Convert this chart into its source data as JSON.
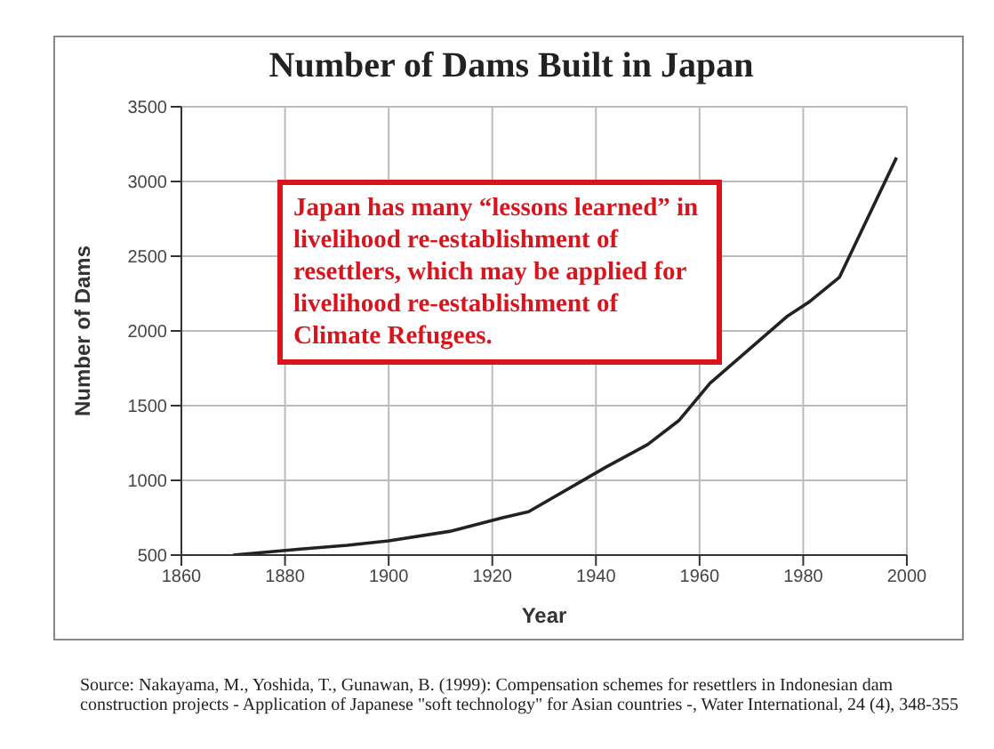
{
  "chart_data": {
    "type": "line",
    "title": "Number of Dams Built in Japan",
    "xlabel": "Year",
    "ylabel": "Number of Dams",
    "x": [
      1870,
      1883,
      1892,
      1900,
      1912,
      1922,
      1927,
      1942,
      1950,
      1956,
      1962,
      1967,
      1977,
      1981,
      1987,
      1998
    ],
    "series": [
      {
        "color": "#222222",
        "values": [
          500,
          540,
          565,
          595,
          660,
          750,
          790,
          1090,
          1240,
          1400,
          1650,
          1800,
          2100,
          2190,
          2360,
          3160
        ]
      }
    ],
    "xlim": [
      1860,
      2000
    ],
    "xticks": [
      1860,
      1880,
      1900,
      1920,
      1940,
      1960,
      1980,
      2000
    ],
    "ylim": [
      500,
      3500
    ],
    "yticks": [
      500,
      1000,
      1500,
      2000,
      2500,
      3000,
      3500
    ],
    "grid": true,
    "legend": false,
    "marker": "none",
    "line_style": "solid",
    "annotations": [
      "Japan has many “lessons learned” in livelihood re-establishment of resettlers, which may be applied for livelihood re-establishment of Climate Refugees.",
      "Source: Nakayama, M., Yoshida, T., Gunawan, B. (1999): Compensation schemes for resettlers in Indonesian dam construction projects - Application of Japanese \"soft technology\" for Asian countries -, Water International, 24 (4), 348-355"
    ]
  }
}
